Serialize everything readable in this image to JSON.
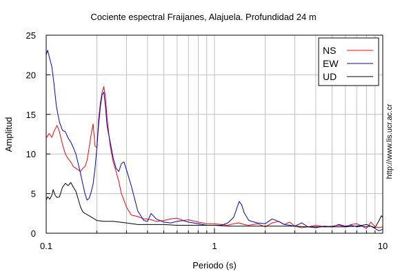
{
  "chart_data": {
    "type": "line",
    "title": "Cociente espectral Fraijanes, Alajuela. Profundidad 24 m",
    "xlabel": "Periodo (s)",
    "ylabel": "Amplitud",
    "xscale": "log",
    "xlim": [
      0.1,
      10
    ],
    "ylim": [
      0,
      25
    ],
    "xticks": [
      0.1,
      1,
      10
    ],
    "xtick_labels": [
      "0.1",
      "1",
      "10"
    ],
    "yticks": [
      0,
      5,
      10,
      15,
      20,
      25
    ],
    "ytick_labels": [
      "0",
      "5",
      "10",
      "15",
      "20",
      "25"
    ],
    "grid": true,
    "legend_position": "top-right",
    "watermark": "http://www.lis.ucr.ac.cr",
    "series": [
      {
        "name": "NS",
        "color": "#ff0000",
        "x": [
          0.1,
          0.104,
          0.108,
          0.112,
          0.116,
          0.12,
          0.125,
          0.13,
          0.135,
          0.14,
          0.145,
          0.15,
          0.155,
          0.16,
          0.165,
          0.17,
          0.175,
          0.18,
          0.185,
          0.19,
          0.195,
          0.2,
          0.205,
          0.21,
          0.215,
          0.22,
          0.225,
          0.23,
          0.24,
          0.25,
          0.26,
          0.27,
          0.28,
          0.3,
          0.32,
          0.35,
          0.38,
          0.4,
          0.42,
          0.45,
          0.5,
          0.55,
          0.6,
          0.65,
          0.7,
          0.8,
          0.9,
          1.0,
          1.1,
          1.2,
          1.3,
          1.4,
          1.5,
          1.6,
          1.8,
          2.0,
          2.2,
          2.4,
          2.6,
          2.8,
          3.0,
          3.3,
          3.6,
          4.0,
          4.5,
          5.0,
          5.5,
          6.0,
          6.5,
          7.0,
          7.5,
          8.0,
          8.5,
          9.0,
          9.5,
          10.0
        ],
        "values": [
          12.0,
          12.6,
          12.1,
          13.0,
          13.6,
          12.8,
          11.2,
          10.0,
          9.4,
          9.0,
          8.4,
          8.2,
          8.0,
          7.8,
          8.2,
          8.4,
          9.2,
          10.8,
          12.5,
          13.8,
          11.0,
          10.8,
          14.5,
          16.5,
          17.8,
          18.5,
          17.2,
          14.5,
          11.0,
          9.0,
          7.8,
          6.5,
          5.0,
          3.3,
          2.3,
          2.1,
          1.8,
          1.8,
          1.7,
          1.5,
          1.6,
          1.8,
          1.9,
          1.6,
          1.7,
          1.4,
          1.2,
          1.2,
          1.1,
          1.0,
          1.2,
          1.3,
          1.1,
          1.0,
          1.2,
          0.8,
          1.3,
          1.5,
          1.1,
          1.4,
          0.9,
          0.7,
          0.8,
          1.0,
          0.8,
          0.9,
          1.0,
          0.8,
          1.1,
          1.2,
          0.9,
          0.6,
          1.4,
          0.8,
          0.7,
          0.8
        ]
      },
      {
        "name": "EW",
        "color": "#0000cc",
        "x": [
          0.1,
          0.102,
          0.105,
          0.108,
          0.111,
          0.115,
          0.12,
          0.125,
          0.13,
          0.135,
          0.14,
          0.145,
          0.15,
          0.155,
          0.16,
          0.165,
          0.17,
          0.175,
          0.18,
          0.185,
          0.19,
          0.195,
          0.2,
          0.205,
          0.21,
          0.215,
          0.22,
          0.225,
          0.23,
          0.24,
          0.25,
          0.26,
          0.27,
          0.28,
          0.29,
          0.3,
          0.32,
          0.35,
          0.38,
          0.4,
          0.42,
          0.45,
          0.5,
          0.55,
          0.6,
          0.65,
          0.7,
          0.8,
          0.9,
          1.0,
          1.1,
          1.2,
          1.3,
          1.35,
          1.4,
          1.45,
          1.5,
          1.6,
          1.8,
          2.0,
          2.2,
          2.4,
          2.6,
          2.8,
          3.0,
          3.3,
          3.6,
          4.0,
          4.5,
          5.0,
          5.5,
          6.0,
          6.5,
          7.0,
          7.5,
          8.0,
          8.5,
          9.0,
          9.5,
          10.0
        ],
        "values": [
          22.5,
          23.1,
          22.0,
          21.0,
          19.0,
          16.0,
          14.0,
          13.0,
          12.8,
          12.0,
          11.5,
          10.8,
          10.0,
          8.8,
          7.5,
          6.2,
          5.0,
          4.2,
          4.4,
          5.2,
          6.2,
          8.2,
          10.8,
          13.8,
          16.0,
          17.5,
          17.8,
          16.0,
          13.5,
          11.5,
          9.5,
          8.2,
          7.8,
          8.8,
          9.0,
          8.0,
          6.0,
          2.8,
          1.6,
          1.5,
          2.5,
          1.8,
          1.4,
          1.3,
          1.5,
          1.6,
          1.4,
          1.2,
          1.0,
          1.0,
          1.0,
          1.3,
          2.0,
          3.0,
          4.0,
          3.6,
          2.6,
          1.6,
          1.3,
          1.2,
          1.8,
          1.5,
          1.1,
          1.0,
          0.9,
          1.3,
          0.8,
          0.7,
          0.9,
          0.8,
          1.1,
          0.9,
          1.0,
          0.8,
          0.9,
          0.8,
          0.9,
          0.6,
          0.3,
          0.5
        ]
      },
      {
        "name": "UD",
        "color": "#000000",
        "x": [
          0.1,
          0.102,
          0.105,
          0.108,
          0.11,
          0.113,
          0.116,
          0.12,
          0.125,
          0.13,
          0.135,
          0.14,
          0.145,
          0.15,
          0.155,
          0.16,
          0.165,
          0.17,
          0.18,
          0.19,
          0.2,
          0.22,
          0.25,
          0.3,
          0.35,
          0.4,
          0.5,
          0.6,
          0.7,
          0.8,
          1.0,
          1.2,
          1.5,
          2.0,
          2.5,
          3.0,
          3.5,
          4.0,
          5.0,
          6.0,
          7.0,
          8.0,
          8.5,
          9.0,
          9.5,
          9.8,
          10.0
        ],
        "values": [
          4.2,
          4.6,
          4.3,
          4.8,
          5.5,
          4.8,
          4.5,
          4.6,
          5.8,
          6.3,
          6.0,
          6.4,
          5.8,
          5.3,
          4.3,
          3.3,
          2.7,
          2.5,
          2.2,
          1.9,
          1.6,
          1.5,
          1.5,
          1.3,
          1.1,
          1.1,
          1.1,
          1.0,
          1.0,
          1.0,
          1.0,
          0.9,
          0.9,
          0.9,
          0.9,
          0.9,
          0.8,
          0.8,
          0.8,
          0.8,
          0.9,
          1.1,
          0.9,
          0.7,
          1.6,
          2.2,
          2.0
        ]
      }
    ]
  }
}
